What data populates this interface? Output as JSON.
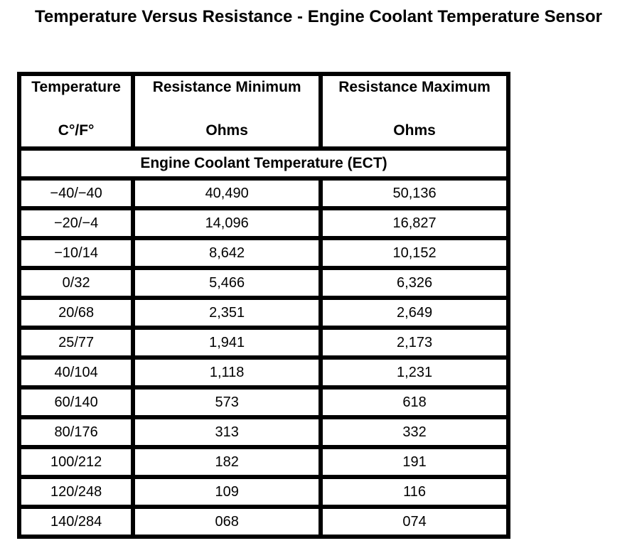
{
  "page": {
    "title": "Temperature Versus Resistance - Engine Coolant Temperature Sensor"
  },
  "colors": {
    "page_background": "#ffffff",
    "table_border": "#000000",
    "text": "#000000"
  },
  "table": {
    "columns": [
      {
        "title": "Temperature",
        "unit": "C°/F°"
      },
      {
        "title": "Resistance Minimum",
        "unit": "Ohms"
      },
      {
        "title": "Resistance Maximum",
        "unit": "Ohms"
      }
    ],
    "section_header": "Engine Coolant Temperature (ECT)",
    "rows": [
      {
        "temperature": "−40/−40",
        "resistance_min": "40,490",
        "resistance_max": "50,136"
      },
      {
        "temperature": "−20/−4",
        "resistance_min": "14,096",
        "resistance_max": "16,827"
      },
      {
        "temperature": "−10/14",
        "resistance_min": "8,642",
        "resistance_max": "10,152"
      },
      {
        "temperature": "0/32",
        "resistance_min": "5,466",
        "resistance_max": "6,326"
      },
      {
        "temperature": "20/68",
        "resistance_min": "2,351",
        "resistance_max": "2,649"
      },
      {
        "temperature": "25/77",
        "resistance_min": "1,941",
        "resistance_max": "2,173"
      },
      {
        "temperature": "40/104",
        "resistance_min": "1,118",
        "resistance_max": "1,231"
      },
      {
        "temperature": "60/140",
        "resistance_min": "573",
        "resistance_max": "618"
      },
      {
        "temperature": "80/176",
        "resistance_min": "313",
        "resistance_max": "332"
      },
      {
        "temperature": "100/212",
        "resistance_min": "182",
        "resistance_max": "191"
      },
      {
        "temperature": "120/248",
        "resistance_min": "109",
        "resistance_max": "116"
      },
      {
        "temperature": "140/284",
        "resistance_min": "068",
        "resistance_max": "074"
      }
    ]
  }
}
